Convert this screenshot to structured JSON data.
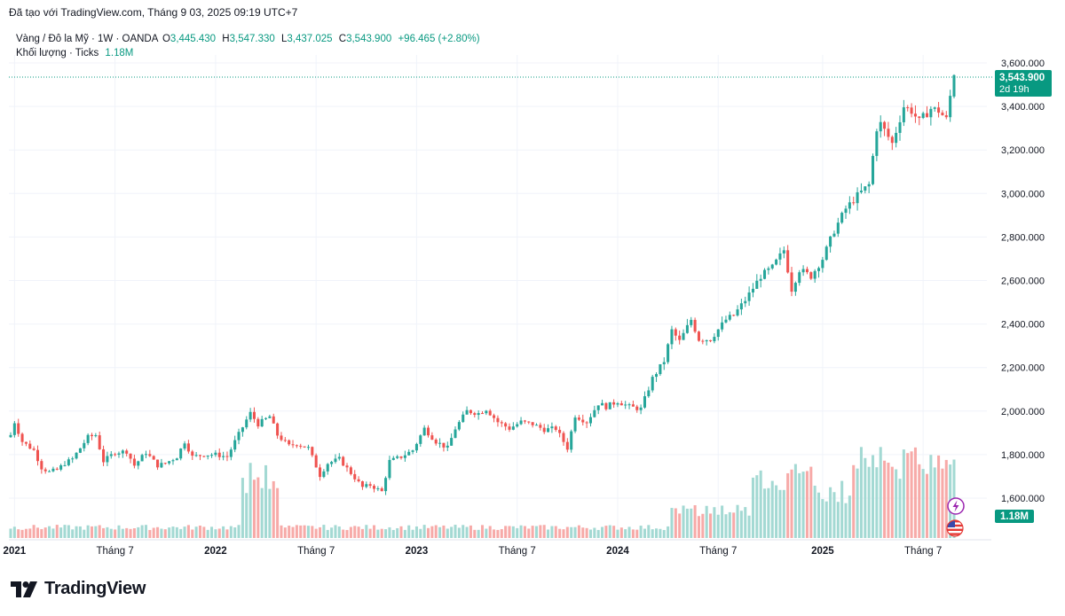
{
  "caption": "Đã tạo với TradingView.com, Tháng 9 03, 2025 09:19 UTC+7",
  "legend": {
    "symbol": "Vàng / Đô la Mỹ · 1W · OANDA",
    "o_key": "O",
    "o_val": "3,445.430",
    "h_key": "H",
    "h_val": "3,547.330",
    "l_key": "L",
    "l_val": "3,437.025",
    "c_key": "C",
    "c_val": "3,543.900",
    "change": "+96.465 (+2.80%)",
    "volume_label": "Khối lượng · Ticks",
    "volume_value": "1.18M"
  },
  "price_badge": {
    "price": "3,543.900",
    "countdown": "2d 19h"
  },
  "volume_badge": "1.18M",
  "brand": "TradingView",
  "icons": {
    "logo": "tradingview-logo-icon",
    "flash": "lightning-icon",
    "flag": "us-flag-icon"
  },
  "colors": {
    "up": "#26a69a",
    "down": "#ef5350",
    "up_vol": "#a3d9d3",
    "down_vol": "#f7aaa8",
    "badge": "#089981"
  },
  "chart_data": {
    "type": "candlestick",
    "title": "Vàng / Đô la Mỹ · 1W · OANDA",
    "ylim": [
      1540,
      3660
    ],
    "y_ticks": [
      "1,600.000",
      "1,800.000",
      "2,000.000",
      "2,200.000",
      "2,400.000",
      "2,600.000",
      "2,800.000",
      "3,000.000",
      "3,200.000",
      "3,400.000",
      "3,600.000"
    ],
    "x_ticks": [
      "2021",
      "Tháng 7",
      "2022",
      "Tháng 7",
      "2023",
      "Tháng 7",
      "2024",
      "Tháng 7",
      "2025",
      "Tháng 7"
    ],
    "anchors": [
      [
        "2020-12-28",
        1890
      ],
      [
        "2021-01-04",
        1950
      ],
      [
        "2021-01-18",
        1860
      ],
      [
        "2021-02-08",
        1820
      ],
      [
        "2021-02-22",
        1740
      ],
      [
        "2021-03-08",
        1720
      ],
      [
        "2021-03-22",
        1730
      ],
      [
        "2021-04-05",
        1760
      ],
      [
        "2021-04-19",
        1780
      ],
      [
        "2021-05-03",
        1830
      ],
      [
        "2021-05-17",
        1880
      ],
      [
        "2021-05-31",
        1890
      ],
      [
        "2021-06-14",
        1770
      ],
      [
        "2021-07-05",
        1810
      ],
      [
        "2021-07-26",
        1815
      ],
      [
        "2021-08-09",
        1750
      ],
      [
        "2021-08-30",
        1810
      ],
      [
        "2021-09-20",
        1750
      ],
      [
        "2021-10-04",
        1760
      ],
      [
        "2021-10-25",
        1790
      ],
      [
        "2021-11-08",
        1860
      ],
      [
        "2021-11-22",
        1790
      ],
      [
        "2021-12-13",
        1800
      ],
      [
        "2022-01-03",
        1800
      ],
      [
        "2022-01-24",
        1790
      ],
      [
        "2022-02-07",
        1860
      ],
      [
        "2022-02-28",
        1960
      ],
      [
        "2022-03-07",
        1990
      ],
      [
        "2022-03-21",
        1940
      ],
      [
        "2022-04-11",
        1975
      ],
      [
        "2022-04-25",
        1890
      ],
      [
        "2022-05-16",
        1840
      ],
      [
        "2022-05-30",
        1850
      ],
      [
        "2022-06-20",
        1830
      ],
      [
        "2022-07-11",
        1705
      ],
      [
        "2022-07-25",
        1760
      ],
      [
        "2022-08-15",
        1780
      ],
      [
        "2022-09-05",
        1715
      ],
      [
        "2022-09-26",
        1650
      ],
      [
        "2022-10-10",
        1660
      ],
      [
        "2022-10-31",
        1630
      ],
      [
        "2022-11-14",
        1770
      ],
      [
        "2022-12-05",
        1790
      ],
      [
        "2022-12-26",
        1820
      ],
      [
        "2023-01-16",
        1920
      ],
      [
        "2023-02-06",
        1860
      ],
      [
        "2023-02-27",
        1830
      ],
      [
        "2023-03-13",
        1920
      ],
      [
        "2023-04-03",
        2000
      ],
      [
        "2023-04-24",
        1990
      ],
      [
        "2023-05-08",
        2010
      ],
      [
        "2023-05-29",
        1950
      ],
      [
        "2023-06-19",
        1920
      ],
      [
        "2023-07-10",
        1950
      ],
      [
        "2023-07-31",
        1940
      ],
      [
        "2023-08-21",
        1915
      ],
      [
        "2023-09-11",
        1920
      ],
      [
        "2023-10-02",
        1830
      ],
      [
        "2023-10-16",
        1980
      ],
      [
        "2023-11-06",
        1950
      ],
      [
        "2023-11-27",
        2035
      ],
      [
        "2023-12-11",
        2020
      ],
      [
        "2024-01-01",
        2045
      ],
      [
        "2024-01-22",
        2020
      ],
      [
        "2024-02-12",
        2010
      ],
      [
        "2024-03-04",
        2150
      ],
      [
        "2024-03-25",
        2230
      ],
      [
        "2024-04-08",
        2370
      ],
      [
        "2024-04-22",
        2320
      ],
      [
        "2024-05-13",
        2420
      ],
      [
        "2024-05-27",
        2330
      ],
      [
        "2024-06-17",
        2330
      ],
      [
        "2024-07-15",
        2420
      ],
      [
        "2024-07-29",
        2440
      ],
      [
        "2024-08-19",
        2510
      ],
      [
        "2024-09-16",
        2620
      ],
      [
        "2024-10-07",
        2660
      ],
      [
        "2024-10-28",
        2740
      ],
      [
        "2024-11-11",
        2560
      ],
      [
        "2024-11-25",
        2650
      ],
      [
        "2024-12-16",
        2620
      ],
      [
        "2025-01-06",
        2700
      ],
      [
        "2025-01-27",
        2830
      ],
      [
        "2025-02-17",
        2930
      ],
      [
        "2025-03-10",
        2990
      ],
      [
        "2025-03-31",
        3040
      ],
      [
        "2025-04-14",
        3300
      ],
      [
        "2025-04-21",
        3320
      ],
      [
        "2025-05-12",
        3230
      ],
      [
        "2025-06-02",
        3400
      ],
      [
        "2025-06-16",
        3380
      ],
      [
        "2025-06-30",
        3330
      ],
      [
        "2025-07-21",
        3390
      ],
      [
        "2025-08-04",
        3380
      ],
      [
        "2025-08-18",
        3340
      ],
      [
        "2025-08-25",
        3447
      ],
      [
        "2025-09-01",
        3544
      ]
    ],
    "last_candle": {
      "date": "2025-09-01",
      "open": 3445.43,
      "high": 3547.33,
      "low": 3437.025,
      "close": 3543.9
    },
    "volume_ylim": [
      0,
      1.6
    ],
    "volume_unit": "M ticks"
  }
}
